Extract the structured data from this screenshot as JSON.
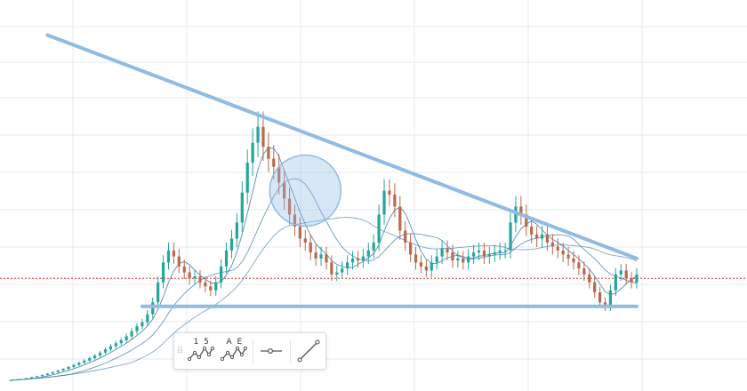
{
  "toolbar": {
    "grip_glyph": "⠿",
    "tools": [
      {
        "name": "numbered-wave",
        "label": "1 5",
        "icon": "wave-icon"
      },
      {
        "name": "lettered-wave",
        "label": "A E",
        "icon": "wave-icon"
      },
      {
        "name": "horizontal-ray",
        "label": "",
        "icon": "horizontal-ray-icon"
      },
      {
        "name": "trend-line",
        "label": "",
        "icon": "trend-line-icon"
      }
    ]
  },
  "chart_data": {
    "type": "candlestick",
    "colors": {
      "up": "#26a69a",
      "down": "#b86a4f",
      "ma_lines": "#2c6ea8",
      "drawings": "#8fbbe4",
      "price_line": "#d02a2a",
      "grid": "#e6e9ec"
    },
    "close": [
      1.0,
      1.3,
      1.6,
      2.0,
      2.5,
      3.0,
      3.6,
      4.3,
      5.0,
      5.8,
      6.6,
      7.6,
      8.6,
      9.7,
      10.8,
      12.0,
      13.3,
      14.8,
      16.4,
      18.0,
      19.5,
      21.0,
      23.0,
      25.5,
      28.0,
      30.0,
      34.0,
      40.0,
      50.0,
      60.0,
      66.0,
      63.0,
      58.0,
      55.0,
      52.0,
      53.0,
      50.0,
      48.0,
      46.0,
      50.0,
      58.0,
      66.0,
      72.0,
      80.0,
      95.0,
      110.0,
      120.0,
      128.0,
      118.0,
      112.0,
      108.0,
      100.0,
      92.0,
      84.0,
      78.0,
      72.0,
      70.0,
      65.0,
      62.0,
      64.0,
      60.0,
      54.0,
      55.0,
      57.0,
      60.0,
      62.0,
      61.0,
      63.0,
      66.0,
      70.0,
      84.0,
      96.0,
      94.0,
      88.0,
      76.0,
      70.0,
      64.0,
      60.0,
      58.0,
      56.0,
      60.0,
      63.0,
      67.0,
      65.0,
      61.0,
      62.0,
      60.0,
      63.0,
      65.0,
      66.0,
      63.0,
      64.0,
      65.0,
      66.0,
      66.0,
      80.0,
      88.0,
      84.0,
      78.0,
      74.0,
      72.0,
      74.0,
      70.0,
      68.0,
      66.0,
      64.0,
      62.0,
      60.0,
      57.0,
      54.0,
      50.0,
      45.0,
      40.0,
      38.0,
      46.0,
      54.0,
      56.0,
      52.0,
      50.0,
      54.0
    ],
    "trend_lines": [
      {
        "from": [
          7,
          174
        ],
        "to": [
          119,
          62
        ]
      },
      {
        "from": [
          25,
          38
        ],
        "to": [
          119,
          38
        ]
      }
    ],
    "circle_marker": {
      "at": [
        56,
        96
      ]
    },
    "price_line": 52,
    "grid": true,
    "legend": "none"
  }
}
